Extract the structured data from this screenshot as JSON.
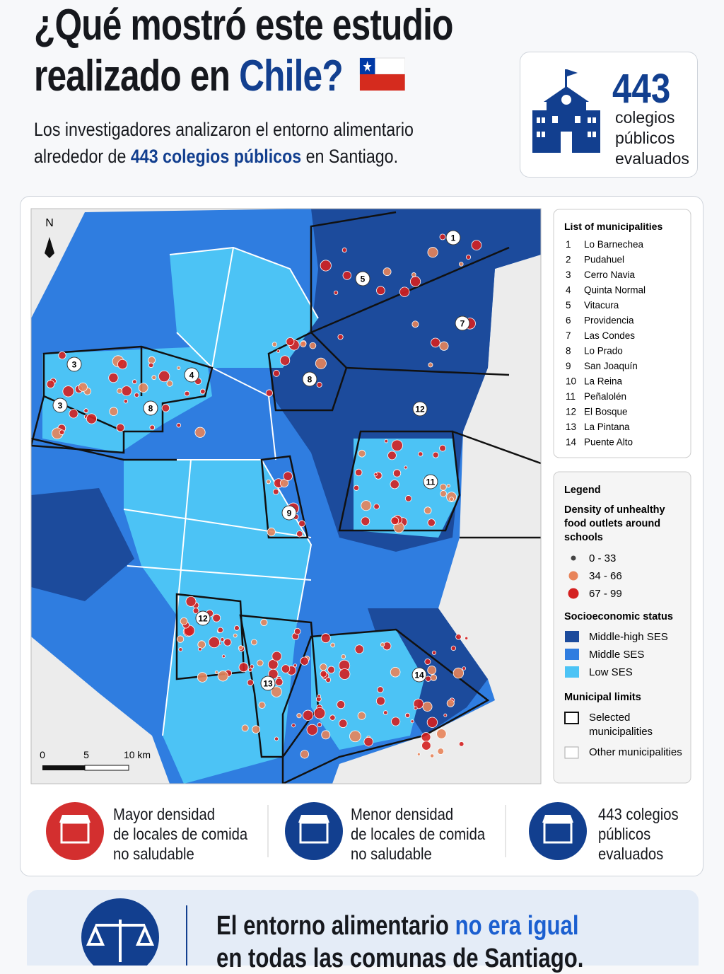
{
  "header": {
    "title_line1": "¿Qué mostró este estudio",
    "title_line2_start": "realizado en",
    "title_highlight": "Chile?",
    "subtitle_line1": "Los investigadores analizaron el entorno alimentario",
    "subtitle_line2_start": "alrededor de",
    "subtitle_highlight": "443 colegios públicos",
    "subtitle_end": "en Santiago."
  },
  "stat_card": {
    "number": "443",
    "lines": [
      "colegios",
      "públicos",
      "evaluados"
    ]
  },
  "map": {
    "north": "N",
    "labels": [
      "1",
      "5",
      "7",
      "3",
      "3",
      "4",
      "8",
      "8",
      "12",
      "11",
      "9",
      "12",
      "13",
      "14"
    ],
    "scale": [
      "0",
      "5",
      "10 km"
    ]
  },
  "municipalities": {
    "title": "List of municipalities",
    "items": [
      [
        "1",
        "Lo Barnechea"
      ],
      [
        "2",
        "Pudahuel"
      ],
      [
        "3",
        "Cerro Navia"
      ],
      [
        "4",
        "Quinta Normal"
      ],
      [
        "5",
        "Vitacura"
      ],
      [
        "6",
        "Providencia"
      ],
      [
        "7",
        "Las Condes"
      ],
      [
        "8",
        "Lo Prado"
      ],
      [
        "9",
        "San Joaquín"
      ],
      [
        "10",
        "La Reina"
      ],
      [
        "11",
        "Peñalolén"
      ],
      [
        "12",
        "El Bosque"
      ],
      [
        "13",
        "La Pintana"
      ],
      [
        "14",
        "Puente Alto"
      ]
    ]
  },
  "legend": {
    "title": "Legend",
    "density_title": "Density of unhealthy food outlets around schools",
    "density": [
      "0 - 33",
      "34 - 66",
      "67 - 99"
    ],
    "ses_title": "Socioeconomic status",
    "ses": [
      "Middle-high SES",
      "Middle SES",
      "Low SES"
    ],
    "limits_title": "Municipal limits",
    "limits": [
      "Selected municipalities",
      "Other municipalities"
    ]
  },
  "footer": [
    {
      "lines": [
        "Mayor densidad",
        "de locales de comida",
        "no saludable"
      ]
    },
    {
      "lines": [
        "Menor densidad",
        "de locales de comida",
        "no saludable"
      ]
    },
    {
      "lines": [
        "443 colegios",
        "públicos",
        "evaluados"
      ]
    }
  ],
  "banner": {
    "line1_start": "El entorno alimentario",
    "line1_highlight": "no era igual",
    "line2": "en todas las comunas de Santiago."
  }
}
